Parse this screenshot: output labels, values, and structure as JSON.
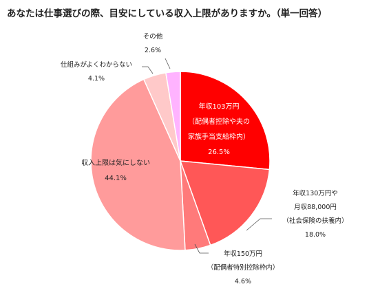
{
  "title": "あなたは仕事選びの際、目安にしている収入上限がありますか。（単一回答）",
  "chart_data": {
    "type": "pie",
    "title": "あなたは仕事選びの際、目安にしている収入上限がありますか。（単一回答）",
    "unit": "%",
    "start_angle_deg": 0,
    "direction": "clockwise",
    "slices": [
      {
        "label_lines": [
          "年収103万円",
          "（配偶者控除や夫の",
          "家族手当支給枠内）"
        ],
        "value": 26.5,
        "value_text": "26.5%",
        "color": "#ff0000"
      },
      {
        "label_lines": [
          "年収130万円や",
          "月収88,000円",
          "（社会保険の扶養内）"
        ],
        "value": 18.0,
        "value_text": "18.0%",
        "color": "#ff5757"
      },
      {
        "label_lines": [
          "年収150万円",
          "（配偶者特別控除枠内）"
        ],
        "value": 4.6,
        "value_text": "4.6%",
        "color": "#ff7a7a"
      },
      {
        "label_lines": [
          "収入上限は気にしない"
        ],
        "value": 44.1,
        "value_text": "44.1%",
        "color": "#ff9b9b"
      },
      {
        "label_lines": [
          "仕組みがよくわからない"
        ],
        "value": 4.1,
        "value_text": "4.1%",
        "color": "#ffc9c9"
      },
      {
        "label_lines": [
          "その他"
        ],
        "value": 2.6,
        "value_text": "2.6%",
        "color": "#ffb3ff"
      }
    ]
  }
}
